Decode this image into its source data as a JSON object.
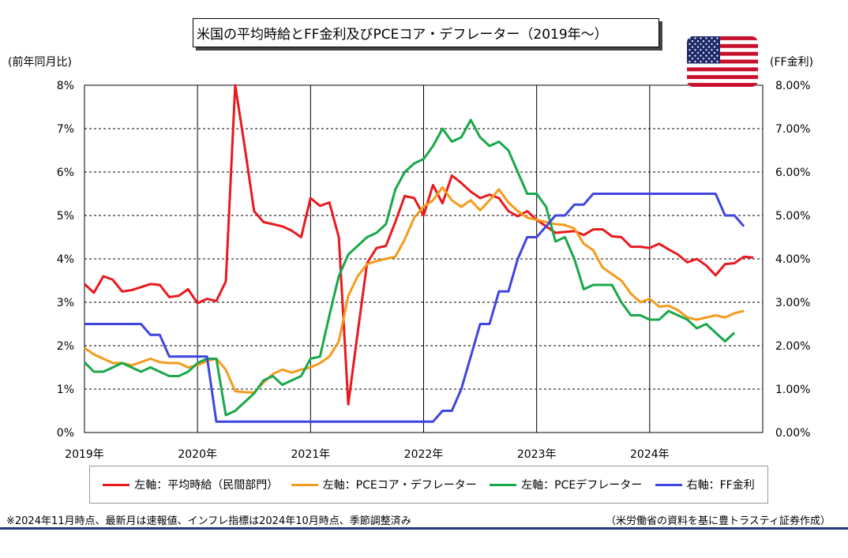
{
  "title": "米国の平均時給とFF金利及びPCEコア・デフレーター（2019年～）",
  "left_axis_unit": "(前年同月比)",
  "right_axis_unit": "(FF金利)",
  "footnote_left": "※2024年11月時点、最新月は速報値、インフレ指標は2024年10月時点、季節調整済み",
  "footnote_right": "（米労働省の資料を基に豊トラスティ証券作成）",
  "flag_icon": "us-flag-icon",
  "chart_data": {
    "type": "line",
    "x_start": "2019-01",
    "x_end": "2024-12",
    "x_ticks": [
      "2019年",
      "2020年",
      "2021年",
      "2022年",
      "2023年",
      "2024年"
    ],
    "ylim_left": [
      0,
      8
    ],
    "ylim_right": [
      0,
      8
    ],
    "y_ticks_left": [
      "0%",
      "1%",
      "2%",
      "3%",
      "4%",
      "5%",
      "6%",
      "7%",
      "8%"
    ],
    "y_ticks_right": [
      "0.00%",
      "1.00%",
      "2.00%",
      "3.00%",
      "4.00%",
      "5.00%",
      "6.00%",
      "7.00%",
      "8.00%"
    ],
    "grid": true,
    "legend_position": "bottom",
    "series": [
      {
        "name": "左軸：平均時給（民間部門）",
        "color": "#e8191e",
        "axis": "left",
        "start": "2019-01",
        "values": [
          3.42,
          3.22,
          3.6,
          3.52,
          3.25,
          3.28,
          3.35,
          3.42,
          3.4,
          3.12,
          3.15,
          3.3,
          2.98,
          3.08,
          3.03,
          3.48,
          8.0,
          6.6,
          5.1,
          4.85,
          4.8,
          4.75,
          4.65,
          4.5,
          5.4,
          5.22,
          5.3,
          4.5,
          0.65,
          2.3,
          3.9,
          4.25,
          4.3,
          4.85,
          5.45,
          5.4,
          5.0,
          5.7,
          5.28,
          5.92,
          5.75,
          5.55,
          5.4,
          5.48,
          5.4,
          5.1,
          4.98,
          5.1,
          4.9,
          4.75,
          4.6,
          4.62,
          4.64,
          4.55,
          4.68,
          4.68,
          4.52,
          4.5,
          4.28,
          4.28,
          4.25,
          4.35,
          4.22,
          4.1,
          3.92,
          4.0,
          3.85,
          3.62,
          3.88,
          3.9,
          4.05,
          4.03
        ]
      },
      {
        "name": "左軸：PCEコア・デフレーター",
        "color": "#f59a1c",
        "axis": "left",
        "start": "2019-01",
        "values": [
          1.95,
          1.8,
          1.7,
          1.6,
          1.6,
          1.55,
          1.62,
          1.7,
          1.62,
          1.6,
          1.6,
          1.5,
          1.55,
          1.65,
          1.7,
          1.45,
          0.95,
          0.93,
          0.92,
          1.15,
          1.35,
          1.45,
          1.38,
          1.45,
          1.5,
          1.6,
          1.75,
          2.1,
          3.15,
          3.6,
          3.88,
          3.95,
          4.0,
          4.05,
          4.45,
          4.95,
          5.2,
          5.35,
          5.65,
          5.35,
          5.2,
          5.35,
          5.12,
          5.35,
          5.6,
          5.3,
          5.1,
          4.95,
          4.9,
          4.85,
          4.8,
          4.78,
          4.7,
          4.35,
          4.2,
          3.8,
          3.65,
          3.5,
          3.2,
          3.0,
          3.08,
          2.9,
          2.92,
          2.82,
          2.65,
          2.6,
          2.65,
          2.7,
          2.65,
          2.75,
          2.8
        ]
      },
      {
        "name": "左軸：PCEデフレーター",
        "color": "#19a84a",
        "axis": "left",
        "start": "2019-01",
        "values": [
          1.62,
          1.4,
          1.4,
          1.5,
          1.6,
          1.5,
          1.4,
          1.5,
          1.4,
          1.3,
          1.3,
          1.4,
          1.6,
          1.7,
          1.7,
          0.4,
          0.5,
          0.7,
          0.9,
          1.2,
          1.3,
          1.1,
          1.2,
          1.3,
          1.7,
          1.75,
          2.7,
          3.6,
          4.1,
          4.3,
          4.5,
          4.6,
          4.8,
          5.6,
          6.0,
          6.2,
          6.3,
          6.6,
          7.0,
          6.7,
          6.8,
          7.2,
          6.8,
          6.6,
          6.7,
          6.5,
          6.0,
          5.5,
          5.5,
          5.2,
          4.4,
          4.5,
          4.0,
          3.3,
          3.4,
          3.4,
          3.4,
          3.0,
          2.7,
          2.7,
          2.6,
          2.6,
          2.8,
          2.7,
          2.6,
          2.4,
          2.5,
          2.3,
          2.1,
          2.3
        ]
      },
      {
        "name": "右軸：FF金利",
        "color": "#3f45e0",
        "axis": "right",
        "start": "2019-01",
        "values": [
          2.5,
          2.5,
          2.5,
          2.5,
          2.5,
          2.5,
          2.5,
          2.25,
          2.25,
          1.75,
          1.75,
          1.75,
          1.75,
          1.75,
          0.25,
          0.25,
          0.25,
          0.25,
          0.25,
          0.25,
          0.25,
          0.25,
          0.25,
          0.25,
          0.25,
          0.25,
          0.25,
          0.25,
          0.25,
          0.25,
          0.25,
          0.25,
          0.25,
          0.25,
          0.25,
          0.25,
          0.25,
          0.25,
          0.5,
          0.5,
          1.0,
          1.75,
          2.5,
          2.5,
          3.25,
          3.25,
          4.0,
          4.5,
          4.5,
          4.75,
          5.0,
          5.0,
          5.25,
          5.25,
          5.5,
          5.5,
          5.5,
          5.5,
          5.5,
          5.5,
          5.5,
          5.5,
          5.5,
          5.5,
          5.5,
          5.5,
          5.5,
          5.5,
          5.0,
          5.0,
          4.75
        ]
      }
    ]
  }
}
